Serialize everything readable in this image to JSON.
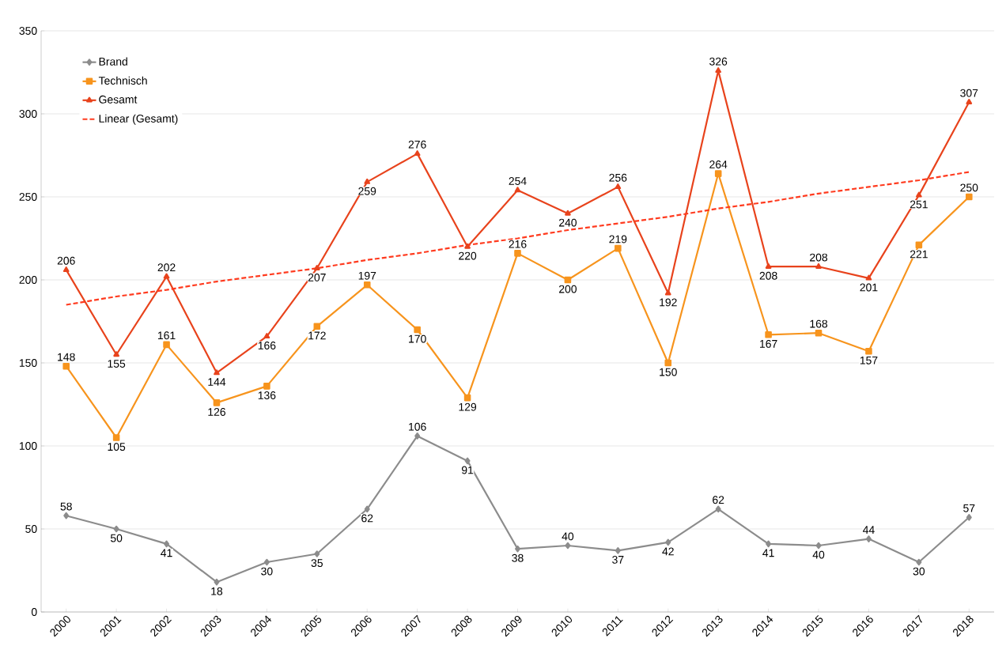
{
  "chart_data": {
    "type": "line",
    "categories": [
      "2000",
      "2001",
      "2002",
      "2003",
      "2004",
      "2005",
      "2006",
      "2007",
      "2008",
      "2009",
      "2010",
      "2011",
      "2012",
      "2013",
      "2014",
      "2015",
      "2016",
      "2017",
      "2018"
    ],
    "series": [
      {
        "name": "Brand",
        "color": "#8c8c8c",
        "marker": "diamond",
        "values": [
          58,
          50,
          41,
          18,
          30,
          35,
          62,
          106,
          91,
          38,
          40,
          37,
          42,
          62,
          41,
          40,
          44,
          30,
          57
        ],
        "value_labels": [
          "58",
          "50",
          "41",
          "18",
          "30",
          "35",
          "62",
          "106",
          "91",
          "38",
          "40",
          "37",
          "42",
          "62",
          "41",
          "40",
          "44",
          "30",
          "57"
        ]
      },
      {
        "name": "Technisch",
        "color": "#f7941d",
        "marker": "square",
        "values": [
          148,
          105,
          161,
          126,
          136,
          172,
          197,
          170,
          129,
          216,
          200,
          219,
          150,
          264,
          167,
          168,
          157,
          221,
          250
        ],
        "value_labels": [
          "148",
          "105",
          "161",
          "126",
          "136",
          "172",
          "197",
          "170",
          "129",
          "216",
          "200",
          "219",
          "150",
          "264",
          "167",
          "168",
          "157",
          "221",
          "250"
        ]
      },
      {
        "name": "Gesamt",
        "color": "#e8431c",
        "marker": "triangle",
        "values": [
          206,
          155,
          202,
          144,
          166,
          207,
          259,
          276,
          220,
          254,
          240,
          256,
          192,
          326,
          208,
          208,
          201,
          251,
          307
        ],
        "value_labels": [
          "206",
          "155",
          "202",
          "144",
          "166",
          "207",
          "259",
          "276",
          "220",
          "254",
          "240",
          "256",
          "192",
          "326",
          "208",
          "208",
          "201",
          "251",
          "307"
        ]
      },
      {
        "name": "Linear (Gesamt)",
        "color": "#ff3b1f",
        "marker": "none",
        "line_style": "dashed",
        "values": [
          185,
          190,
          194,
          199,
          203,
          207,
          212,
          216,
          221,
          225,
          230,
          234,
          238,
          243,
          247,
          252,
          256,
          260,
          265
        ]
      }
    ],
    "ylim": [
      0,
      350
    ],
    "yticks": [
      0,
      50,
      100,
      150,
      200,
      250,
      300,
      350
    ],
    "grid": "y",
    "legend": "top left"
  }
}
